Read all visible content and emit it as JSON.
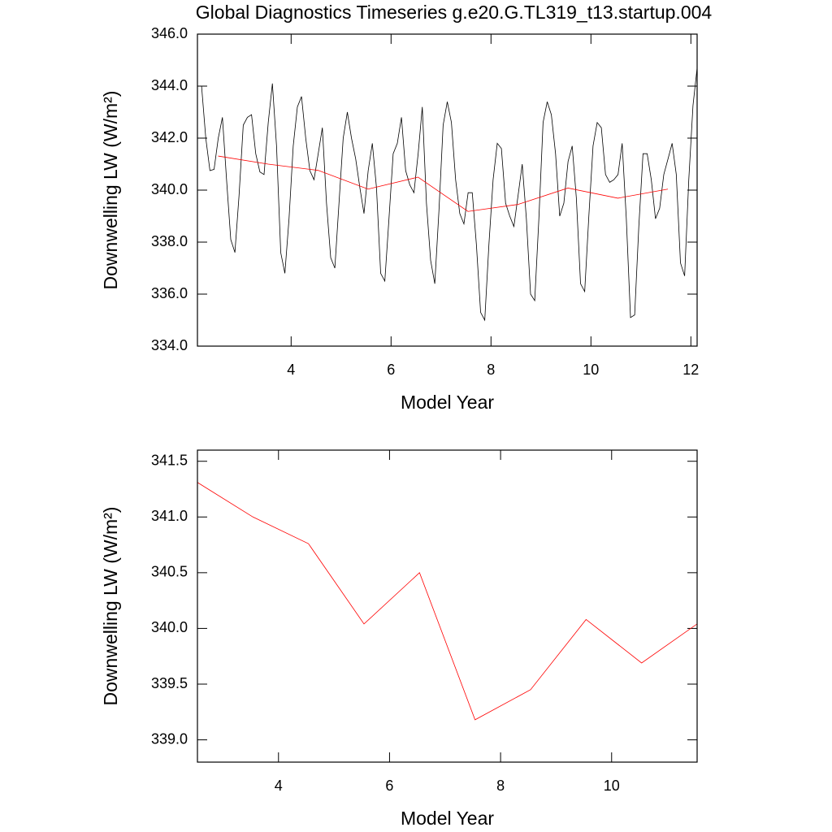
{
  "chart_data": [
    {
      "type": "line",
      "title": "Global Diagnostics Timeseries g.e20.G.TL319_t13.startup.004",
      "x_label": "Model Year",
      "y_label": "Downwelling LW (W/m²)",
      "xlim": [
        2.125,
        12.125
      ],
      "xticks": [
        4,
        6,
        8,
        10,
        12
      ],
      "ylim": [
        334,
        346
      ],
      "yticks": [
        {
          "value": 334,
          "label": "334.0"
        },
        {
          "value": 336,
          "label": "336.0"
        },
        {
          "value": 338,
          "label": "338.0"
        },
        {
          "value": 340,
          "label": "340.0"
        },
        {
          "value": 342,
          "label": "342.0"
        },
        {
          "value": 344,
          "label": "344.0"
        },
        {
          "value": 346,
          "label": "346.0"
        }
      ],
      "series": [
        {
          "color": "#000000",
          "x": [
            2.125,
            2.208,
            2.292,
            2.375,
            2.458,
            2.542,
            2.625,
            2.708,
            2.792,
            2.875,
            2.958,
            3.042,
            3.125,
            3.208,
            3.292,
            3.375,
            3.458,
            3.542,
            3.625,
            3.708,
            3.792,
            3.875,
            3.958,
            4.042,
            4.125,
            4.208,
            4.292,
            4.375,
            4.458,
            4.542,
            4.625,
            4.708,
            4.792,
            4.875,
            4.958,
            5.042,
            5.125,
            5.208,
            5.292,
            5.375,
            5.458,
            5.542,
            5.625,
            5.708,
            5.792,
            5.875,
            5.958,
            6.042,
            6.125,
            6.208,
            6.292,
            6.375,
            6.458,
            6.542,
            6.625,
            6.708,
            6.792,
            6.875,
            6.958,
            7.042,
            7.125,
            7.208,
            7.292,
            7.375,
            7.458,
            7.542,
            7.625,
            7.708,
            7.792,
            7.875,
            7.958,
            8.042,
            8.125,
            8.208,
            8.292,
            8.375,
            8.458,
            8.542,
            8.625,
            8.708,
            8.792,
            8.875,
            8.958,
            9.042,
            9.125,
            9.208,
            9.292,
            9.375,
            9.458,
            9.542,
            9.625,
            9.708,
            9.792,
            9.875,
            9.958,
            10.042,
            10.125,
            10.208,
            10.292,
            10.375,
            10.458,
            10.542,
            10.625,
            10.708,
            10.792,
            10.875,
            10.958,
            11.042,
            11.125,
            11.208,
            11.292,
            11.375,
            11.458,
            11.542,
            11.625,
            11.708,
            11.792,
            11.875,
            11.958,
            12.042,
            12.125
          ],
          "values": [
            344.0,
            344.0,
            342.0,
            340.75,
            340.8,
            342.0,
            342.8,
            340.4,
            338.1,
            337.6,
            339.8,
            342.5,
            342.8,
            342.9,
            341.4,
            340.7,
            340.6,
            342.6,
            344.1,
            341.7,
            337.6,
            336.8,
            338.9,
            341.7,
            343.2,
            343.6,
            342.0,
            340.75,
            340.4,
            341.4,
            342.4,
            339.5,
            337.4,
            337.0,
            339.5,
            342.0,
            343.0,
            342.0,
            341.2,
            340.1,
            339.1,
            340.75,
            341.8,
            340.1,
            336.8,
            336.5,
            338.9,
            341.4,
            341.8,
            342.8,
            340.75,
            340.2,
            339.9,
            341.4,
            343.2,
            339.5,
            337.3,
            336.4,
            339.2,
            342.5,
            343.4,
            342.6,
            340.4,
            339.1,
            338.7,
            339.9,
            339.9,
            337.9,
            335.3,
            335.0,
            337.9,
            340.4,
            341.8,
            341.6,
            339.5,
            339.0,
            338.6,
            339.8,
            341.0,
            338.9,
            336.0,
            335.75,
            338.9,
            342.6,
            343.4,
            342.9,
            341.4,
            339.0,
            339.5,
            341.1,
            341.7,
            339.7,
            336.4,
            336.1,
            339.0,
            341.7,
            342.6,
            342.4,
            340.6,
            340.3,
            340.4,
            340.6,
            341.8,
            338.9,
            335.1,
            335.2,
            338.6,
            341.4,
            341.4,
            340.4,
            338.9,
            339.3,
            340.6,
            341.2,
            341.8,
            340.6,
            337.2,
            336.7,
            340.4,
            343.25,
            344.7
          ]
        },
        {
          "color": "#ff0000",
          "x": [
            2.54,
            3.54,
            4.54,
            5.54,
            6.54,
            7.54,
            8.54,
            9.54,
            10.54,
            11.54
          ],
          "values": [
            341.31,
            341.0,
            340.76,
            340.04,
            340.5,
            339.18,
            339.45,
            340.08,
            339.69,
            340.04
          ]
        }
      ]
    },
    {
      "type": "line",
      "x_label": "Model Year",
      "y_label": "Downwelling LW (W/m²)",
      "xlim": [
        2.54,
        11.54
      ],
      "xticks": [
        4,
        6,
        8,
        10
      ],
      "ylim": [
        338.8,
        341.6
      ],
      "yticks": [
        {
          "value": 339,
          "label": "339.0"
        },
        {
          "value": 339.5,
          "label": "339.5"
        },
        {
          "value": 340,
          "label": "340.0"
        },
        {
          "value": 340.5,
          "label": "340.5"
        },
        {
          "value": 341,
          "label": "341.0"
        },
        {
          "value": 341.5,
          "label": "341.5"
        }
      ],
      "series": [
        {
          "color": "#ff0000",
          "x": [
            2.54,
            3.54,
            4.54,
            5.54,
            6.54,
            7.54,
            8.54,
            9.54,
            10.54,
            11.54
          ],
          "values": [
            341.31,
            341.0,
            340.76,
            340.04,
            340.5,
            339.18,
            339.45,
            340.08,
            339.69,
            340.04
          ]
        }
      ]
    }
  ]
}
